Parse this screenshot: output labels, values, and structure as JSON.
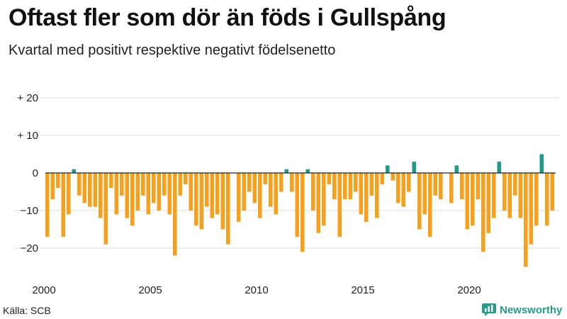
{
  "title": "Oftast fler som dör än föds i Gullspång",
  "subtitle": "Kvartal med positivt respektive negativt födelsenetto",
  "source": "Källa: SCB",
  "brand": "Newsworthy",
  "colors": {
    "negative": "#f5a01e",
    "positive": "#1f9a8a",
    "grid": "#dddddd",
    "axis": "#222222",
    "brand": "#2a9a8a"
  },
  "chart_data": {
    "type": "bar",
    "title": "Oftast fler som dör än föds i Gullspång",
    "subtitle": "Kvartal med positivt respektive negativt födelsenetto",
    "xlabel": "",
    "ylabel": "",
    "ylim": [
      -25,
      22
    ],
    "yticks": [
      {
        "value": 20,
        "label": "+ 20"
      },
      {
        "value": 10,
        "label": "+ 10"
      },
      {
        "value": 0,
        "label": "0"
      },
      {
        "value": -10,
        "label": "−10"
      },
      {
        "value": -20,
        "label": "−20"
      }
    ],
    "xticks": [
      {
        "year": 2000,
        "label": "2000"
      },
      {
        "year": 2005,
        "label": "2005"
      },
      {
        "year": 2010,
        "label": "2010"
      },
      {
        "year": 2015,
        "label": "2015"
      },
      {
        "year": 2020,
        "label": "2020"
      }
    ],
    "start_year": 2000,
    "quarters_per_year": 4,
    "values": [
      -17,
      -7,
      -4,
      -17,
      -11,
      1,
      -6,
      -8,
      -9,
      -9,
      -12,
      -19,
      -4,
      -11,
      -6,
      -12,
      -14,
      -10,
      -6,
      -11,
      -8,
      -10,
      -6,
      -11,
      -22,
      -6,
      -3,
      -10,
      -14,
      -15,
      -9,
      -12,
      -11,
      -15,
      -19,
      0,
      -13,
      -10,
      -5,
      -8,
      -12,
      -3,
      -9,
      -11,
      -5,
      1,
      -5,
      -17,
      -21,
      1,
      -10,
      -16,
      -14,
      -3,
      -7,
      -17,
      -7,
      -7,
      -5,
      -11,
      -13,
      -6,
      -12,
      -3,
      2,
      -2,
      -8,
      -9,
      -5,
      3,
      -15,
      -11,
      -17,
      -6,
      -7,
      0,
      -8,
      2,
      -7,
      -15,
      -14,
      -7,
      -21,
      -16,
      -12,
      3,
      -10,
      -12,
      -6,
      -12,
      -25,
      -19,
      -14,
      5,
      -14,
      -10
    ]
  }
}
